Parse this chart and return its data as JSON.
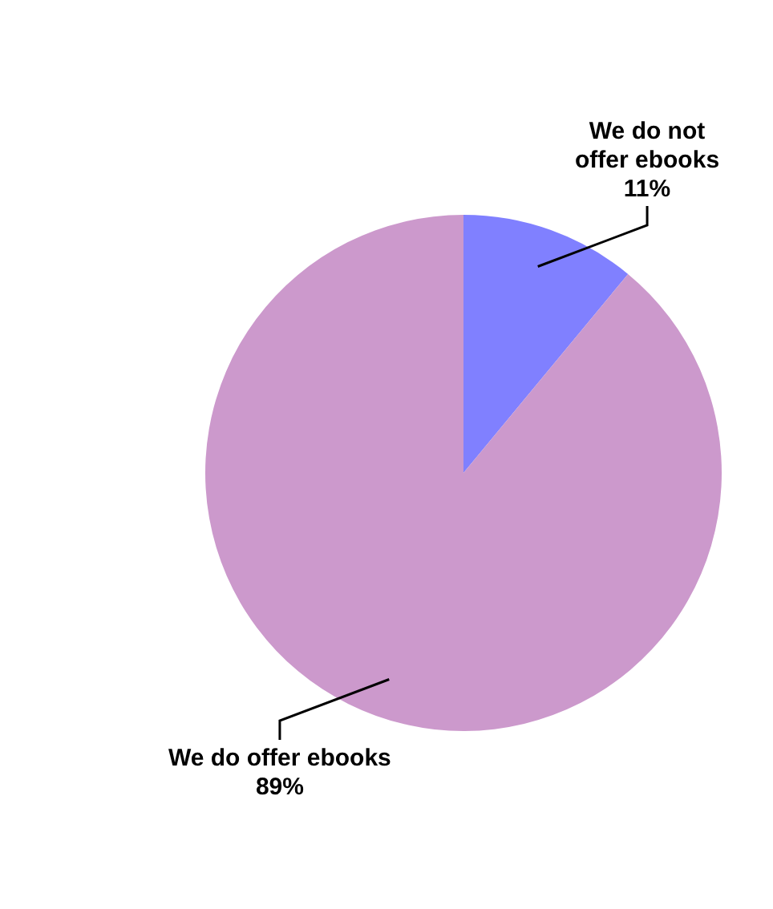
{
  "chart_data": {
    "type": "pie",
    "categories": [
      "We do not offer ebooks",
      "We do offer ebooks"
    ],
    "values": [
      11,
      89
    ],
    "colors": [
      "#8080ff",
      "#cc99cc"
    ],
    "value_labels": [
      "11%",
      "89%"
    ]
  }
}
